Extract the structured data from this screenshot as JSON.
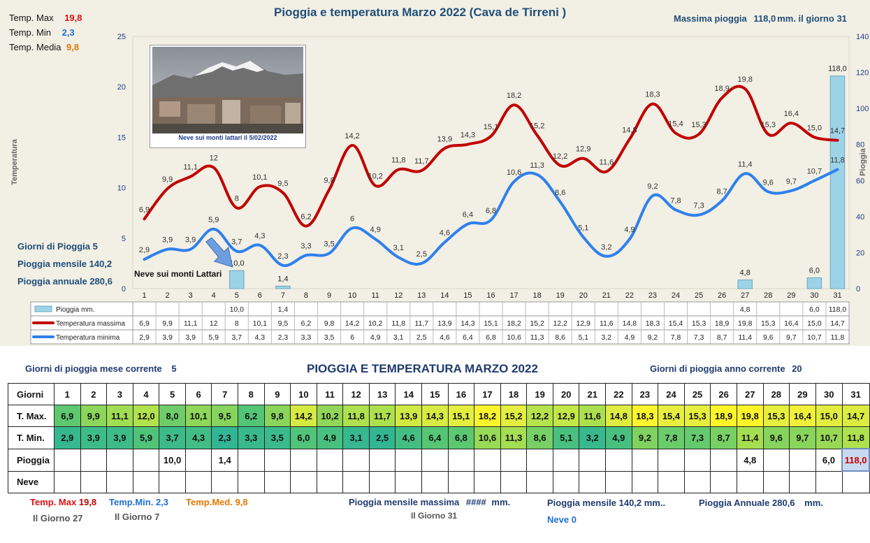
{
  "header": {
    "title": "Pioggia e temperatura Marzo 2022 (Cava de Tirreni )",
    "max_rain_label": "Massima pioggia",
    "max_rain_value": "118,0",
    "max_rain_unit": "mm. il giorno",
    "max_rain_day": "31"
  },
  "stats": {
    "tmax_label": "Temp. Max",
    "tmax_value": "19,8",
    "tmin_label": "Temp. Min",
    "tmin_value": "2,3",
    "tmed_label": "Temp. Media",
    "tmed_value": "9,8",
    "rain_days_label": "Giorni di Pioggia",
    "rain_days_value": "5",
    "rain_month_label": "Pioggia mensile",
    "rain_month_value": "140,2",
    "rain_year_label": "Pioggia annuale",
    "rain_year_value": "280,6"
  },
  "photo": {
    "caption": "Neve sui monti lattari il 5/02/2022"
  },
  "annotation": {
    "text": "Neve sui monti Lattari"
  },
  "colors": {
    "tmax": "#c00000",
    "tmin": "#2f80ed",
    "rain": "#9cd3e6",
    "panel": "#f2efe4"
  },
  "chart_data": {
    "type": "line",
    "title": "Pioggia e temperatura Marzo 2022 (Cava de Tirreni )",
    "ylabel": "Temperatura",
    "y2label": "Pioggia",
    "ylim": [
      0,
      25
    ],
    "y2lim": [
      0,
      140
    ],
    "yticks": [
      0,
      5,
      10,
      15,
      20,
      25
    ],
    "y2ticks": [
      0,
      20,
      40,
      60,
      80,
      100,
      120,
      140
    ],
    "x": [
      1,
      2,
      3,
      4,
      5,
      6,
      7,
      8,
      9,
      10,
      11,
      12,
      13,
      14,
      15,
      16,
      17,
      18,
      19,
      20,
      21,
      22,
      23,
      24,
      25,
      26,
      27,
      28,
      29,
      30,
      31
    ],
    "series": [
      {
        "name": "Pioggia mm.",
        "type": "bar",
        "axis": "right",
        "values": [
          null,
          null,
          null,
          null,
          10.0,
          null,
          1.4,
          null,
          null,
          null,
          null,
          null,
          null,
          null,
          null,
          null,
          null,
          null,
          null,
          null,
          null,
          null,
          null,
          null,
          null,
          null,
          4.8,
          null,
          null,
          6.0,
          118.0
        ],
        "labels": [
          "",
          "",
          "",
          "",
          "10,0",
          "",
          "1,4",
          "",
          "",
          "",
          "",
          "",
          "",
          "",
          "",
          "",
          "",
          "",
          "",
          "",
          "",
          "",
          "",
          "",
          "",
          "",
          "4,8",
          "",
          "",
          "6,0",
          "118,0"
        ]
      },
      {
        "name": "Temperatura massima",
        "type": "line",
        "axis": "left",
        "values": [
          6.9,
          9.9,
          11.1,
          12,
          8,
          10.1,
          9.5,
          6.2,
          9.8,
          14.2,
          10.2,
          11.8,
          11.7,
          13.9,
          14.3,
          15.1,
          18.2,
          15.2,
          12.2,
          12.9,
          11.6,
          14.8,
          18.3,
          15.4,
          15.3,
          18.9,
          19.8,
          15.3,
          16.4,
          15.0,
          14.7
        ],
        "labels": [
          "6,9",
          "9,9",
          "11,1",
          "12",
          "8",
          "10,1",
          "9,5",
          "6,2",
          "9,8",
          "14,2",
          "10,2",
          "11,8",
          "11,7",
          "13,9",
          "14,3",
          "15,1",
          "18,2",
          "15,2",
          "12,2",
          "12,9",
          "11,6",
          "14,8",
          "18,3",
          "15,4",
          "15,3",
          "18,9",
          "19,8",
          "15,3",
          "16,4",
          "15,0",
          "14,7"
        ]
      },
      {
        "name": "Temperatura minima",
        "type": "line",
        "axis": "left",
        "values": [
          2.9,
          3.9,
          3.9,
          5.9,
          3.7,
          4.3,
          2.3,
          3.3,
          3.5,
          6,
          4.9,
          3.1,
          2.5,
          4.6,
          6.4,
          6.8,
          10.6,
          11.3,
          8.6,
          5.1,
          3.2,
          4.9,
          9.2,
          7.8,
          7.3,
          8.7,
          11.4,
          9.6,
          9.7,
          10.7,
          11.8
        ],
        "labels": [
          "2,9",
          "3,9",
          "3,9",
          "5,9",
          "3,7",
          "4,3",
          "2,3",
          "3,3",
          "3,5",
          "6",
          "4,9",
          "3,1",
          "2,5",
          "4,6",
          "6,4",
          "6,8",
          "10,6",
          "11,3",
          "8,6",
          "5,1",
          "3,2",
          "4,9",
          "9,2",
          "7,8",
          "7,3",
          "8,7",
          "11,4",
          "9,6",
          "9,7",
          "10,7",
          "11,8"
        ]
      }
    ]
  },
  "table": {
    "title": "PIOGGIA E TEMPERATURA MARZO 2022",
    "rain_days_month_label": "Giorni di pioggia mese corrente",
    "rain_days_month_value": "5",
    "rain_days_year_label": "Giorni di pioggia anno corrente",
    "rain_days_year_value": "20",
    "header_label": "Giorni",
    "days": [
      "1",
      "2",
      "3",
      "4",
      "5",
      "6",
      "7",
      "8",
      "9",
      "10",
      "11",
      "12",
      "13",
      "14",
      "15",
      "16",
      "17",
      "18",
      "19",
      "20",
      "21",
      "22",
      "23",
      "24",
      "25",
      "26",
      "27",
      "28",
      "29",
      "30",
      "31"
    ],
    "tmax_label": "T. Max.",
    "tmax": [
      "6,9",
      "9,9",
      "11,1",
      "12,0",
      "8,0",
      "10,1",
      "9,5",
      "6,2",
      "9,8",
      "14,2",
      "10,2",
      "11,8",
      "11,7",
      "13,9",
      "14,3",
      "15,1",
      "18,2",
      "15,2",
      "12,2",
      "12,9",
      "11,6",
      "14,8",
      "18,3",
      "15,4",
      "15,3",
      "18,9",
      "19,8",
      "15,3",
      "16,4",
      "15,0",
      "14,7"
    ],
    "tmin_label": "T. Min.",
    "tmin": [
      "2,9",
      "3,9",
      "3,9",
      "5,9",
      "3,7",
      "4,3",
      "2,3",
      "3,3",
      "3,5",
      "6,0",
      "4,9",
      "3,1",
      "2,5",
      "4,6",
      "6,4",
      "6,8",
      "10,6",
      "11,3",
      "8,6",
      "5,1",
      "3,2",
      "4,9",
      "9,2",
      "7,8",
      "7,3",
      "8,7",
      "11,4",
      "9,6",
      "9,7",
      "10,7",
      "11,8"
    ],
    "rain_label": "Pioggia",
    "rain": [
      "",
      "",
      "",
      "",
      "10,0",
      "",
      "1,4",
      "",
      "",
      "",
      "",
      "",
      "",
      "",
      "",
      "",
      "",
      "",
      "",
      "",
      "",
      "",
      "",
      "",
      "",
      "",
      "4,8",
      "",
      "",
      "6,0",
      "118,0"
    ],
    "snow_label": "Neve",
    "snow": [
      "",
      "",
      "",
      "",
      "",
      "",
      "",
      "",
      "",
      "",
      "",
      "",
      "",
      "",
      "",
      "",
      "",
      "",
      "",
      "",
      "",
      "",
      "",
      "",
      "",
      "",
      "",
      "",
      "",
      "",
      ""
    ]
  },
  "footer": {
    "tmax_label": "Temp. Max",
    "tmax_value": "19,8",
    "tmax_day_label": "Il Giorno",
    "tmax_day": "27",
    "tmin_label": "Temp.Min.",
    "tmin_value": "2,3",
    "tmin_day_label": "Il Giorno",
    "tmin_day": "7",
    "tmed_label": "Temp.Med.",
    "tmed_value": "9,8",
    "rain_max_label": "Pioggia mensile massima",
    "rain_max_value": "####",
    "rain_max_unit": "mm.",
    "rain_max_day_label": "Il Giorno",
    "rain_max_day": "31",
    "rain_month_label": "Pioggia mensile",
    "rain_month_value": "140,2 mm..",
    "rain_year_label": "Pioggia Annuale",
    "rain_year_value": "280,6",
    "rain_year_unit": "mm.",
    "snow_label": "Neve",
    "snow_value": "0"
  }
}
